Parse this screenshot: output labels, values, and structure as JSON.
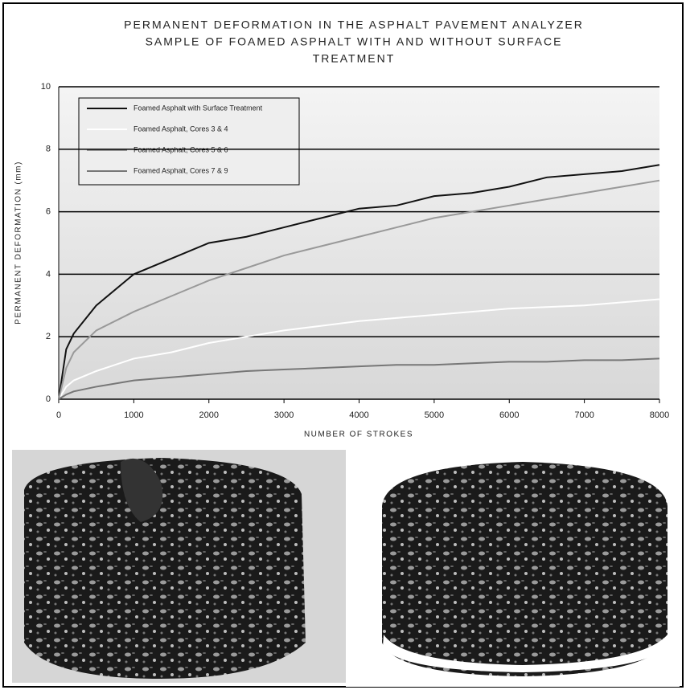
{
  "chart_data": {
    "type": "line",
    "title": [
      "PERMANENT DEFORMATION IN THE ASPHALT PAVEMENT ANALYZER",
      "SAMPLE OF FOAMED ASPHALT WITH AND WITHOUT SURFACE",
      "TREATMENT"
    ],
    "x_label": "NUMBER OF STROKES",
    "y_label": "PERMANENT DEFORMATION (mm)",
    "x": [
      0,
      100,
      200,
      500,
      1000,
      1500,
      2000,
      2500,
      3000,
      3500,
      4000,
      4500,
      5000,
      5500,
      6000,
      6500,
      7000,
      7500,
      8000
    ],
    "series": [
      {
        "name": "Foamed Asphalt with Surface Treatment",
        "color": "#111111",
        "values": [
          0,
          1.6,
          2.1,
          3.0,
          4.0,
          4.5,
          5.0,
          5.2,
          5.5,
          5.8,
          6.1,
          6.2,
          6.5,
          6.6,
          6.8,
          7.1,
          7.2,
          7.3,
          7.5
        ]
      },
      {
        "name": "Foamed Asphalt, Cores 3 & 4",
        "color": "#ffffff",
        "values": [
          0,
          0.4,
          0.6,
          0.9,
          1.3,
          1.5,
          1.8,
          2.0,
          2.2,
          2.35,
          2.5,
          2.6,
          2.7,
          2.8,
          2.9,
          2.95,
          3.0,
          3.1,
          3.2
        ]
      },
      {
        "name": "Foamed Asphalt, Cores 5 & 6",
        "color": "#999999",
        "values": [
          0,
          1.0,
          1.5,
          2.2,
          2.8,
          3.3,
          3.8,
          4.2,
          4.6,
          4.9,
          5.2,
          5.5,
          5.8,
          6.0,
          6.2,
          6.4,
          6.6,
          6.8,
          7.0
        ]
      },
      {
        "name": "Foamed Asphalt, Cores 7 & 9",
        "color": "#777777",
        "values": [
          0,
          0.15,
          0.25,
          0.4,
          0.6,
          0.7,
          0.8,
          0.9,
          0.95,
          1.0,
          1.05,
          1.1,
          1.1,
          1.15,
          1.2,
          1.2,
          1.25,
          1.25,
          1.3
        ]
      }
    ],
    "xlim": [
      0,
      8000
    ],
    "xticks": [
      0,
      1000,
      2000,
      3000,
      4000,
      5000,
      6000,
      7000,
      8000
    ],
    "ylim": [
      0,
      10
    ],
    "yticks": [
      0,
      2,
      4,
      6,
      8,
      10
    ],
    "grid": true,
    "legend": "top-left"
  }
}
